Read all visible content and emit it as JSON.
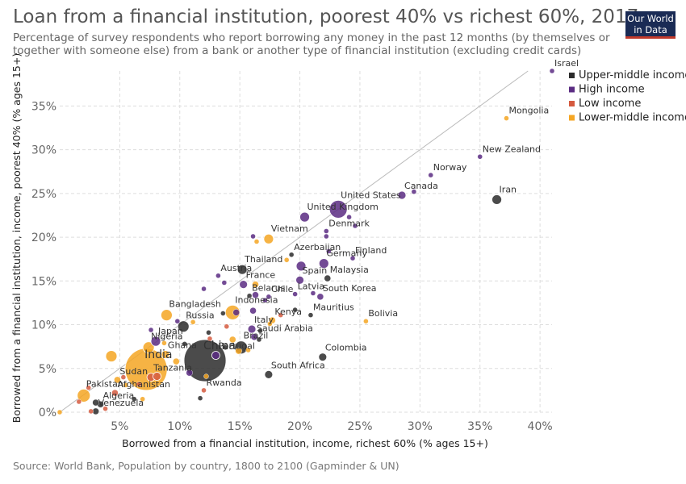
{
  "title": "Loan from a financial institution, poorest 40% vs richest 60%, 2017",
  "subtitle": "Percentage of survey respondents who report borrowing any money in the past 12 months (by themselves or together with someone else) from a bank or another type of financial institution (excluding credit cards)",
  "logo": {
    "line1": "Our World",
    "line2": "in Data"
  },
  "source": "Source: World Bank, Population by country, 1800 to 2100 (Gapminder & UN)",
  "colors": {
    "Upper-middle income": "#2b2b2b",
    "High income": "#5b2c83",
    "Low income": "#d55a3f",
    "Lower-middle income": "#f5a623"
  },
  "chart_data": {
    "type": "scatter",
    "title": "Loan from a financial institution, poorest 40% vs richest 60%, 2017",
    "xlabel": "Borrowed from a financial institution, income, richest 60% (% ages 15+)",
    "ylabel": "Borrowed from a financial institution, income, poorest 40% (% ages 15+)",
    "xlim": [
      0,
      41
    ],
    "ylim": [
      0,
      39
    ],
    "xticks": [
      "5%",
      "10%",
      "15%",
      "20%",
      "25%",
      "30%",
      "35%",
      "40%"
    ],
    "xtick_values": [
      5,
      10,
      15,
      20,
      25,
      30,
      35,
      40
    ],
    "yticks": [
      "0%",
      "5%",
      "10%",
      "15%",
      "20%",
      "25%",
      "30%",
      "35%"
    ],
    "ytick_values": [
      0,
      5,
      10,
      15,
      20,
      25,
      30,
      35
    ],
    "grid": true,
    "legend_position": "top-right",
    "legend": [
      "Upper-middle income",
      "High income",
      "Low income",
      "Lower-middle income"
    ],
    "reference_line": "y = x",
    "points": [
      {
        "label": "Israel",
        "x": 41,
        "y": 39,
        "group": "High income",
        "size": 3
      },
      {
        "label": "Mongolia",
        "x": 37.2,
        "y": 33.6,
        "group": "Lower-middle income",
        "size": 3
      },
      {
        "label": "New Zealand",
        "x": 35,
        "y": 29.2,
        "group": "High income",
        "size": 3
      },
      {
        "label": "Norway",
        "x": 30.9,
        "y": 27.1,
        "group": "High income",
        "size": 3
      },
      {
        "label": "Canada",
        "x": 28.5,
        "y": 24.8,
        "group": "High income",
        "size": 5
      },
      {
        "label": "Iran",
        "x": 36.4,
        "y": 24.3,
        "group": "Upper-middle income",
        "size": 6
      },
      {
        "label": "United States",
        "x": 23.2,
        "y": 23.2,
        "group": "High income",
        "size": 11
      },
      {
        "label": "United Kingdom",
        "x": 20.4,
        "y": 22.3,
        "group": "High income",
        "size": 6
      },
      {
        "label": "Denmark",
        "x": 22.2,
        "y": 20.7,
        "group": "High income",
        "size": 3
      },
      {
        "label": "Vietnam",
        "x": 17.4,
        "y": 19.8,
        "group": "Lower-middle income",
        "size": 6
      },
      {
        "label": "Azerbaijan",
        "x": 19.3,
        "y": 18.0,
        "group": "Upper-middle income",
        "size": 3
      },
      {
        "label": "Finland",
        "x": 24.4,
        "y": 17.6,
        "group": "High income",
        "size": 3
      },
      {
        "label": "Germany",
        "x": 22.0,
        "y": 17.0,
        "group": "High income",
        "size": 6
      },
      {
        "label": "Thailand",
        "x": 15.2,
        "y": 16.3,
        "group": "Upper-middle income",
        "size": 6
      },
      {
        "label": "Austria",
        "x": 13.2,
        "y": 15.6,
        "group": "High income",
        "size": 3
      },
      {
        "label": "Spain",
        "x": 20.0,
        "y": 15.1,
        "group": "High income",
        "size": 5
      },
      {
        "label": "Malaysia",
        "x": 22.3,
        "y": 15.3,
        "group": "Upper-middle income",
        "size": 4
      },
      {
        "label": "France",
        "x": 15.3,
        "y": 14.6,
        "group": "High income",
        "size": 5
      },
      {
        "label": "South Korea",
        "x": 21.7,
        "y": 13.2,
        "group": "High income",
        "size": 4
      },
      {
        "label": "Belarus",
        "x": 15.8,
        "y": 13.3,
        "group": "Upper-middle income",
        "size": 3
      },
      {
        "label": "Chile",
        "x": 17.4,
        "y": 13.2,
        "group": "High income",
        "size": 3
      },
      {
        "label": "Latvia",
        "x": 19.6,
        "y": 13.5,
        "group": "High income",
        "size": 3
      },
      {
        "label": "Indonesia",
        "x": 14.4,
        "y": 11.4,
        "group": "Lower-middle income",
        "size": 9
      },
      {
        "label": "Mauritius",
        "x": 20.9,
        "y": 11.1,
        "group": "Upper-middle income",
        "size": 3
      },
      {
        "label": "Kenya",
        "x": 17.7,
        "y": 10.5,
        "group": "Lower-middle income",
        "size": 4
      },
      {
        "label": "Bolivia",
        "x": 25.5,
        "y": 10.4,
        "group": "Lower-middle income",
        "size": 3
      },
      {
        "label": "Bangladesh",
        "x": 8.9,
        "y": 11.1,
        "group": "Lower-middle income",
        "size": 7
      },
      {
        "label": "Russia",
        "x": 10.3,
        "y": 9.8,
        "group": "Upper-middle income",
        "size": 7
      },
      {
        "label": "Italy",
        "x": 16.0,
        "y": 9.5,
        "group": "High income",
        "size": 5
      },
      {
        "label": "Saudi Arabia",
        "x": 16.2,
        "y": 8.6,
        "group": "High income",
        "size": 4
      },
      {
        "label": "Brazil",
        "x": 15.1,
        "y": 7.4,
        "group": "Upper-middle income",
        "size": 8
      },
      {
        "label": "Japan",
        "x": 8.0,
        "y": 8.1,
        "group": "High income",
        "size": 6
      },
      {
        "label": "Nigeria",
        "x": 7.4,
        "y": 7.4,
        "group": "Lower-middle income",
        "size": 7
      },
      {
        "label": "China",
        "x": 12.1,
        "y": 5.9,
        "group": "Upper-middle income",
        "size": 26
      },
      {
        "label": "Portugal",
        "x": 13.0,
        "y": 6.5,
        "group": "High income",
        "size": 5
      },
      {
        "label": "Colombia",
        "x": 21.9,
        "y": 6.3,
        "group": "Upper-middle income",
        "size": 5
      },
      {
        "label": "India",
        "x": 7.2,
        "y": 4.9,
        "group": "Lower-middle income",
        "size": 26
      },
      {
        "label": "Ghana",
        "x": 8.8,
        "y": 6.6,
        "group": "Lower-middle income",
        "size": 5
      },
      {
        "label": "South Africa",
        "x": 17.4,
        "y": 4.3,
        "group": "Upper-middle income",
        "size": 5
      },
      {
        "label": "Tanzania",
        "x": 7.6,
        "y": 4.0,
        "group": "Low income",
        "size": 5
      },
      {
        "label": "Sudan",
        "x": 4.8,
        "y": 3.7,
        "group": "Lower-middle income",
        "size": 4
      },
      {
        "label": "Rwanda",
        "x": 12.0,
        "y": 2.5,
        "group": "Low income",
        "size": 3
      },
      {
        "label": "Pakistan",
        "x": 2.0,
        "y": 1.9,
        "group": "Lower-middle income",
        "size": 8
      },
      {
        "label": "Afghanistan",
        "x": 4.6,
        "y": 2.2,
        "group": "Low income",
        "size": 4
      },
      {
        "label": "Algeria",
        "x": 3.4,
        "y": 0.9,
        "group": "Upper-middle income",
        "size": 4
      },
      {
        "label": "Venezuela",
        "x": 3.0,
        "y": 0.1,
        "group": "Upper-middle income",
        "size": 4
      },
      {
        "label": "",
        "x": 4.3,
        "y": 6.4,
        "group": "Lower-middle income",
        "size": 7
      },
      {
        "label": "",
        "x": 5.5,
        "y": 3.1,
        "group": "Lower-middle income",
        "size": 3
      },
      {
        "label": "",
        "x": 6.6,
        "y": 3.2,
        "group": "Low income",
        "size": 3
      },
      {
        "label": "",
        "x": 8.7,
        "y": 7.9,
        "group": "Lower-middle income",
        "size": 3
      },
      {
        "label": "",
        "x": 8.1,
        "y": 4.1,
        "group": "Low income",
        "size": 5
      },
      {
        "label": "",
        "x": 9.7,
        "y": 5.8,
        "group": "Lower-middle income",
        "size": 4
      },
      {
        "label": "",
        "x": 10.8,
        "y": 4.5,
        "group": "High income",
        "size": 4
      },
      {
        "label": "",
        "x": 12.2,
        "y": 4.1,
        "group": "Lower-middle income",
        "size": 3
      },
      {
        "label": "",
        "x": 12.4,
        "y": 9.1,
        "group": "Upper-middle income",
        "size": 3
      },
      {
        "label": "",
        "x": 13.8,
        "y": 7.4,
        "group": "Upper-middle income",
        "size": 3
      },
      {
        "label": "",
        "x": 14.4,
        "y": 8.3,
        "group": "Lower-middle income",
        "size": 4
      },
      {
        "label": "",
        "x": 15.7,
        "y": 7.1,
        "group": "Lower-middle income",
        "size": 3
      },
      {
        "label": "",
        "x": 14.7,
        "y": 11.4,
        "group": "High income",
        "size": 4
      },
      {
        "label": "",
        "x": 16.1,
        "y": 11.6,
        "group": "High income",
        "size": 4
      },
      {
        "label": "",
        "x": 16.3,
        "y": 13.4,
        "group": "High income",
        "size": 4
      },
      {
        "label": "",
        "x": 12.0,
        "y": 14.1,
        "group": "High income",
        "size": 3
      },
      {
        "label": "",
        "x": 13.7,
        "y": 14.8,
        "group": "High income",
        "size": 3
      },
      {
        "label": "",
        "x": 16.3,
        "y": 14.6,
        "group": "Lower-middle income",
        "size": 4
      },
      {
        "label": "",
        "x": 16.1,
        "y": 20.1,
        "group": "High income",
        "size": 3
      },
      {
        "label": "",
        "x": 16.4,
        "y": 19.5,
        "group": "Lower-middle income",
        "size": 3
      },
      {
        "label": "",
        "x": 20.1,
        "y": 16.7,
        "group": "High income",
        "size": 6
      },
      {
        "label": "",
        "x": 22.4,
        "y": 18.4,
        "group": "High income",
        "size": 3
      },
      {
        "label": "",
        "x": 24.1,
        "y": 22.3,
        "group": "High income",
        "size": 3
      },
      {
        "label": "",
        "x": 24.6,
        "y": 21.3,
        "group": "High income",
        "size": 3
      },
      {
        "label": "",
        "x": 29.5,
        "y": 25.2,
        "group": "High income",
        "size": 3
      },
      {
        "label": "",
        "x": 21.1,
        "y": 13.6,
        "group": "High income",
        "size": 3
      },
      {
        "label": "",
        "x": 19.6,
        "y": 11.7,
        "group": "Upper-middle income",
        "size": 3
      },
      {
        "label": "",
        "x": 18.4,
        "y": 11.1,
        "group": "Low income",
        "size": 3
      },
      {
        "label": "",
        "x": 17.5,
        "y": 10.1,
        "group": "Lower-middle income",
        "size": 3
      },
      {
        "label": "",
        "x": 16.6,
        "y": 8.3,
        "group": "Upper-middle income",
        "size": 3
      },
      {
        "label": "",
        "x": 14.9,
        "y": 7.0,
        "group": "Lower-middle income",
        "size": 4
      },
      {
        "label": "",
        "x": 16.7,
        "y": 9.3,
        "group": "Upper-middle income",
        "size": 3
      },
      {
        "label": "",
        "x": 12.5,
        "y": 8.4,
        "group": "Low income",
        "size": 3
      },
      {
        "label": "",
        "x": 10.4,
        "y": 7.8,
        "group": "Upper-middle income",
        "size": 3
      },
      {
        "label": "",
        "x": 11.7,
        "y": 1.6,
        "group": "Upper-middle income",
        "size": 3
      },
      {
        "label": "",
        "x": 6.2,
        "y": 1.5,
        "group": "Upper-middle income",
        "size": 3
      },
      {
        "label": "",
        "x": 6.9,
        "y": 1.5,
        "group": "Lower-middle income",
        "size": 3
      },
      {
        "label": "",
        "x": 1.6,
        "y": 1.2,
        "group": "Low income",
        "size": 3
      },
      {
        "label": "",
        "x": 2.4,
        "y": 2.8,
        "group": "Low income",
        "size": 3
      },
      {
        "label": "",
        "x": 3.0,
        "y": 1.1,
        "group": "Upper-middle income",
        "size": 4
      },
      {
        "label": "",
        "x": 3.8,
        "y": 0.4,
        "group": "Low income",
        "size": 3
      },
      {
        "label": "",
        "x": 2.6,
        "y": 0.1,
        "group": "Low income",
        "size": 3
      },
      {
        "label": "",
        "x": 0.0,
        "y": 0.0,
        "group": "Lower-middle income",
        "size": 3
      },
      {
        "label": "",
        "x": 5.3,
        "y": 4.0,
        "group": "Low income",
        "size": 3
      },
      {
        "label": "",
        "x": 6.1,
        "y": 4.6,
        "group": "Lower-middle income",
        "size": 3
      },
      {
        "label": "",
        "x": 7.6,
        "y": 9.4,
        "group": "High income",
        "size": 3
      },
      {
        "label": "",
        "x": 9.8,
        "y": 10.4,
        "group": "High income",
        "size": 3
      },
      {
        "label": "",
        "x": 11.1,
        "y": 10.3,
        "group": "Lower-middle income",
        "size": 3
      },
      {
        "label": "",
        "x": 13.6,
        "y": 11.3,
        "group": "Upper-middle income",
        "size": 3
      },
      {
        "label": "",
        "x": 17.1,
        "y": 12.8,
        "group": "High income",
        "size": 3
      },
      {
        "label": "",
        "x": 13.9,
        "y": 9.8,
        "group": "Low income",
        "size": 3
      },
      {
        "label": "",
        "x": 18.9,
        "y": 17.4,
        "group": "Lower-middle income",
        "size": 3
      },
      {
        "label": "",
        "x": 22.2,
        "y": 20.1,
        "group": "High income",
        "size": 3
      }
    ]
  }
}
